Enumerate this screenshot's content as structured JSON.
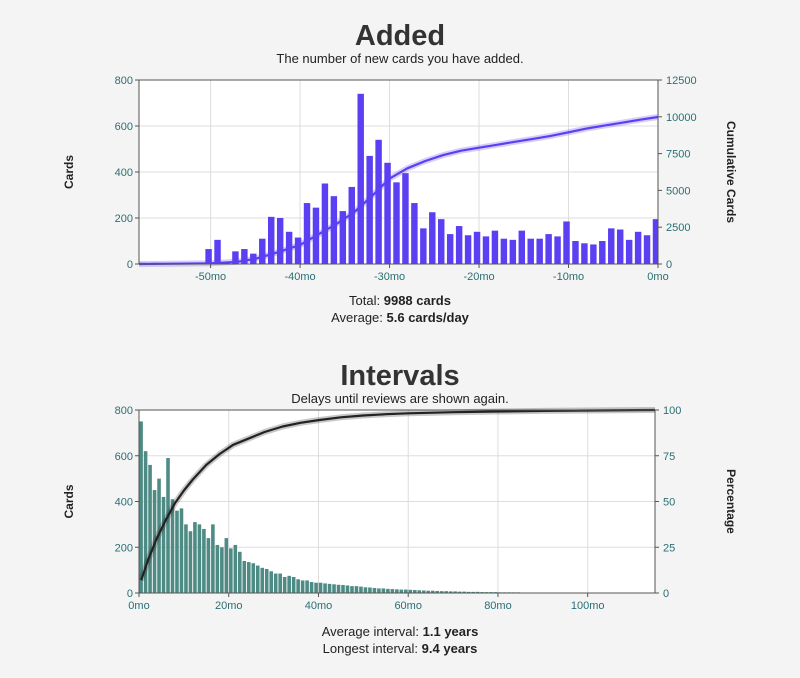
{
  "added": {
    "title": "Added",
    "subtitle": "The number of new cards you have added.",
    "total_label": "Total:",
    "total_value": "9988 cards",
    "average_label": "Average:",
    "average_value": "5.6 cards/day"
  },
  "intervals": {
    "title": "Intervals",
    "subtitle": "Delays until reviews are shown again.",
    "average_label": "Average interval:",
    "average_value": "1.1 years",
    "longest_label": "Longest interval:",
    "longest_value": "9.4 years"
  },
  "colors": {
    "added_bar": "#5b3ff2",
    "added_line": "#5b3ff2",
    "intervals_bar": "#4e8b84",
    "intervals_line": "#222222",
    "tick": "#2a6f73",
    "grid": "#dddddd"
  },
  "chart_data": [
    {
      "type": "bar",
      "name": "added",
      "xlim": [
        -58,
        0
      ],
      "ylim": [
        0,
        800
      ],
      "y2lim": [
        0,
        12500
      ],
      "xticks": [
        -50,
        -40,
        -30,
        -20,
        -10,
        0
      ],
      "xtick_labels": [
        "-50mo",
        "-40mo",
        "-30mo",
        "-20mo",
        "-10mo",
        "0mo"
      ],
      "yticks": [
        0,
        200,
        400,
        600,
        800
      ],
      "ytick_labels": [
        "0",
        "200",
        "400",
        "600",
        "800"
      ],
      "y2ticks": [
        0,
        2500,
        5000,
        7500,
        10000,
        12500
      ],
      "y2tick_labels": [
        "0",
        "2500",
        "5000",
        "7500",
        "10000",
        "12500"
      ],
      "ylabel": "Cards",
      "y2label": "Cumulative Cards",
      "grid": true,
      "x": [
        -58,
        -57,
        -56,
        -55,
        -54,
        -53,
        -52,
        -51,
        -50,
        -49,
        -48,
        -47,
        -46,
        -45,
        -44,
        -43,
        -42,
        -41,
        -40,
        -39,
        -38,
        -37,
        -36,
        -35,
        -34,
        -33,
        -32,
        -31,
        -30,
        -29,
        -28,
        -27,
        -26,
        -25,
        -24,
        -23,
        -22,
        -21,
        -20,
        -19,
        -18,
        -17,
        -16,
        -15,
        -14,
        -13,
        -12,
        -11,
        -10,
        -9,
        -8,
        -7,
        -6,
        -5,
        -4,
        -3,
        -2,
        -1,
        0
      ],
      "values": [
        5,
        3,
        5,
        4,
        3,
        4,
        3,
        5,
        65,
        105,
        5,
        55,
        65,
        45,
        110,
        205,
        200,
        140,
        115,
        265,
        245,
        350,
        295,
        230,
        335,
        740,
        470,
        540,
        440,
        355,
        395,
        265,
        155,
        225,
        195,
        130,
        165,
        125,
        140,
        120,
        145,
        110,
        105,
        145,
        110,
        110,
        130,
        120,
        185,
        100,
        90,
        85,
        100,
        155,
        150,
        105,
        140,
        125,
        195
      ],
      "cumulative_x": [
        -58,
        -54,
        -50,
        -47,
        -45,
        -43,
        -40,
        -38,
        -36,
        -34,
        -32,
        -30,
        -28,
        -26,
        -24,
        -22,
        -20,
        -18,
        -16,
        -14,
        -12,
        -10,
        -8,
        -6,
        -4,
        -2,
        0
      ],
      "cumulative": [
        0,
        20,
        50,
        150,
        350,
        700,
        1300,
        2000,
        2700,
        3500,
        4600,
        5800,
        6500,
        7000,
        7400,
        7700,
        7900,
        8100,
        8300,
        8500,
        8700,
        8950,
        9200,
        9400,
        9600,
        9800,
        9988
      ]
    },
    {
      "type": "bar",
      "name": "intervals",
      "xlim": [
        0,
        115
      ],
      "ylim": [
        0,
        800
      ],
      "y2lim": [
        0,
        100
      ],
      "xticks": [
        0,
        20,
        40,
        60,
        80,
        100
      ],
      "xtick_labels": [
        "0mo",
        "20mo",
        "40mo",
        "60mo",
        "80mo",
        "100mo"
      ],
      "yticks": [
        0,
        200,
        400,
        600,
        800
      ],
      "ytick_labels": [
        "0",
        "200",
        "400",
        "600",
        "800"
      ],
      "y2ticks": [
        0,
        25,
        50,
        75,
        100
      ],
      "y2tick_labels": [
        "0",
        "25",
        "50",
        "75",
        "100"
      ],
      "ylabel": "Cards",
      "y2label": "Percentage",
      "grid": true,
      "bar_width_months": 1,
      "x_start": 0,
      "values": [
        750,
        620,
        560,
        450,
        500,
        420,
        590,
        410,
        360,
        370,
        300,
        270,
        310,
        300,
        280,
        240,
        300,
        210,
        200,
        240,
        195,
        210,
        180,
        140,
        135,
        130,
        120,
        110,
        105,
        95,
        85,
        85,
        70,
        75,
        70,
        60,
        55,
        55,
        48,
        45,
        45,
        42,
        40,
        38,
        36,
        35,
        33,
        30,
        30,
        28,
        25,
        24,
        22,
        20,
        20,
        18,
        17,
        16,
        15,
        15,
        14,
        13,
        12,
        11,
        10,
        10,
        9,
        8,
        8,
        7,
        7,
        6,
        6,
        5,
        5,
        5,
        4,
        4,
        4,
        4,
        3,
        3,
        3,
        3,
        3,
        2,
        2,
        2,
        2,
        2,
        2,
        2,
        2,
        2,
        1,
        1,
        1,
        1,
        1,
        1,
        1,
        1,
        1,
        1,
        1,
        1,
        1,
        1,
        1,
        1,
        1,
        1,
        1,
        1,
        1
      ],
      "cumulative_x": [
        0.5,
        2,
        4,
        6,
        8,
        10,
        12,
        15,
        18,
        21,
        24,
        28,
        32,
        36,
        40,
        45,
        50,
        55,
        60,
        70,
        80,
        90,
        100,
        115
      ],
      "cumulative": [
        7,
        18,
        30,
        40,
        49,
        56,
        62,
        70,
        76,
        81,
        84,
        88,
        91,
        93,
        94.5,
        96,
        97,
        97.7,
        98.2,
        98.8,
        99.2,
        99.5,
        99.7,
        100
      ]
    }
  ]
}
